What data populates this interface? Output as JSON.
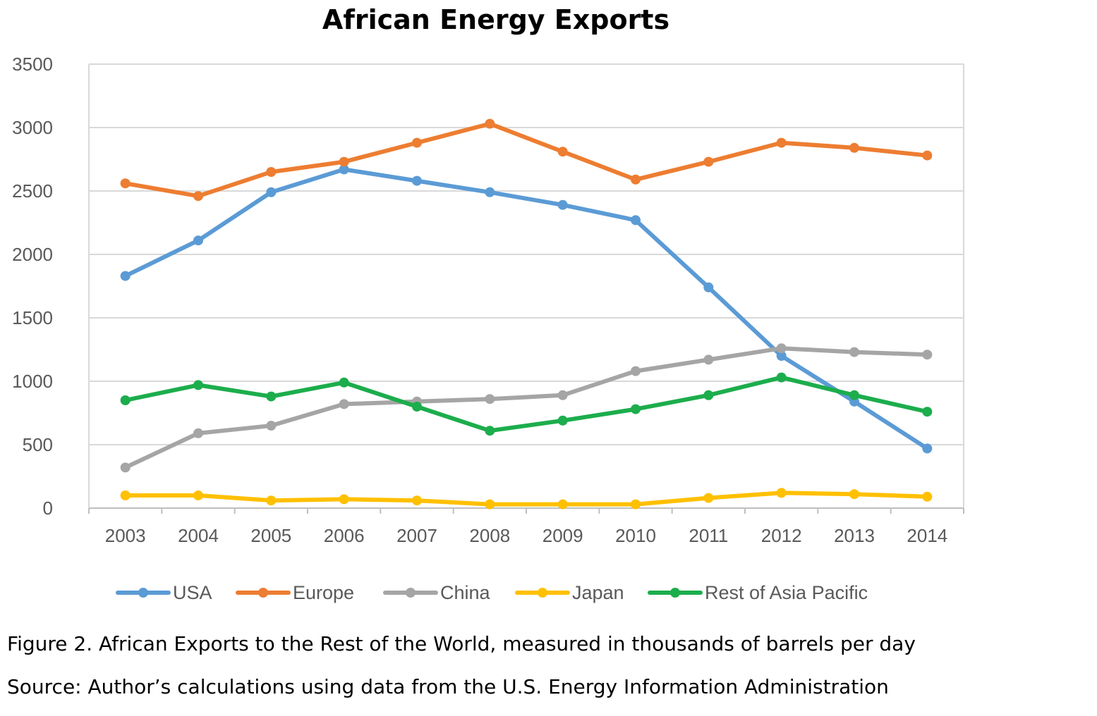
{
  "chart_data": {
    "type": "line",
    "title": "African Energy Exports",
    "xlabel": "",
    "ylabel": "",
    "ylim": [
      0,
      3500
    ],
    "yticks": [
      0,
      500,
      1000,
      1500,
      2000,
      2500,
      3000,
      3500
    ],
    "grid": "horizontal",
    "legend": "bottom",
    "categories": [
      "2003",
      "2004",
      "2005",
      "2006",
      "2007",
      "2008",
      "2009",
      "2010",
      "2011",
      "2012",
      "2013",
      "2014"
    ],
    "series": [
      {
        "name": "USA",
        "color": "#5b9bd5",
        "values": [
          1830,
          2110,
          2490,
          2670,
          2580,
          2490,
          2390,
          2270,
          1740,
          1200,
          840,
          470
        ]
      },
      {
        "name": "Europe",
        "color": "#ed7d31",
        "values": [
          2560,
          2460,
          2650,
          2730,
          2880,
          3030,
          2810,
          2590,
          2730,
          2880,
          2840,
          2780
        ]
      },
      {
        "name": "China",
        "color": "#a5a5a5",
        "values": [
          320,
          590,
          650,
          820,
          840,
          860,
          890,
          1080,
          1170,
          1260,
          1230,
          1210
        ]
      },
      {
        "name": "Japan",
        "color": "#ffc000",
        "values": [
          100,
          100,
          60,
          70,
          60,
          30,
          30,
          30,
          80,
          120,
          110,
          90
        ]
      },
      {
        "name": "Rest of Asia Pacific",
        "color": "#1cad4c",
        "values": [
          850,
          970,
          880,
          990,
          800,
          610,
          690,
          780,
          890,
          1030,
          890,
          760
        ]
      }
    ]
  },
  "captions": {
    "figure": "Figure 2. African Exports to the Rest of the World, measured in thousands of barrels per day",
    "source": "Source: Author’s calculations using data from the U.S. Energy Information Administration"
  }
}
